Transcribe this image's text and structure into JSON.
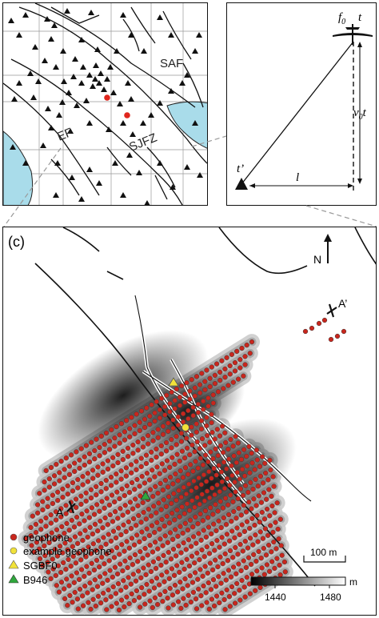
{
  "panel_a": {
    "fault_labels": [
      "SAF",
      "EF",
      "SJFZ"
    ],
    "stations_shown": true
  },
  "panel_b": {
    "source_label_f": "f",
    "source_label_f_sub": "0",
    "source_label_t": "t",
    "station_label": "t’",
    "distance_label": "l",
    "vertical_label_v": "v",
    "vertical_label_sub": "0",
    "vertical_label_t": "t"
  },
  "panel_c": {
    "panel_label": "(c)",
    "north_label": "N",
    "profile_start": "A",
    "profile_end": "A’",
    "scale_bar_label": "100 m",
    "colorbar": {
      "unit": "m",
      "tick_low": "1440",
      "tick_high": "1480",
      "range": [
        1430,
        1490
      ]
    },
    "legend": [
      {
        "label": "geophone",
        "marker": "circle",
        "color": "#c8261d"
      },
      {
        "label": "example geophone",
        "marker": "circle",
        "color": "#f1e23a"
      },
      {
        "label": "SGBF0",
        "marker": "triangle",
        "color": "#f1e23a"
      },
      {
        "label": "B946",
        "marker": "triangle",
        "color": "#2fa83c"
      }
    ],
    "geophone_color": "#c8261d"
  }
}
